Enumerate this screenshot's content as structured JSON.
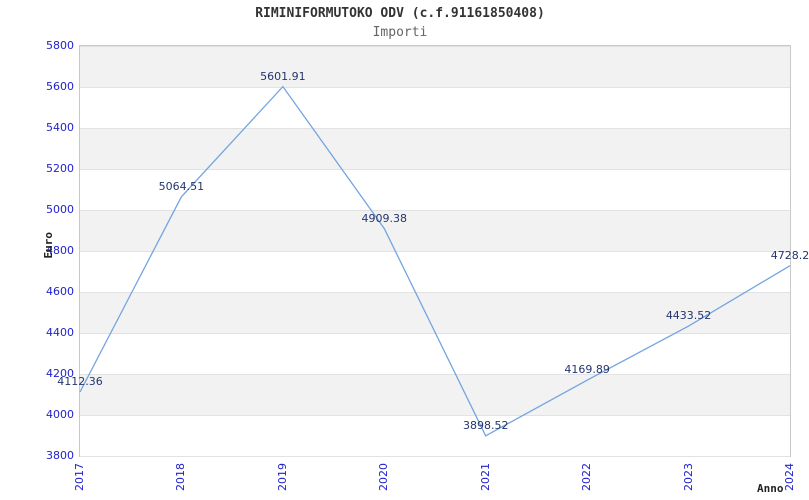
{
  "header": {
    "title": "RIMINIFORMUTOKO ODV (c.f.91161850408)",
    "subtitle": "Importi"
  },
  "axes": {
    "y_label": "Euro",
    "x_label": "Anno"
  },
  "colors": {
    "line": "#74a5e0",
    "tick_label": "#2222cc",
    "point_label": "#24356e",
    "band_gray": "#f2f2f2",
    "band_white": "#ffffff",
    "grid_line": "#e2e2e2",
    "plot_border": "#c9c9c9",
    "title_text": "#333333",
    "subtitle_text": "#666666",
    "axis_title_text": "#222222"
  },
  "chart_data": {
    "type": "line",
    "title": "RIMINIFORMUTOKO ODV (c.f.91161850408)",
    "subtitle": "Importi",
    "xlabel": "Anno",
    "ylabel": "Euro",
    "categories": [
      "2017",
      "2018",
      "2019",
      "2020",
      "2021",
      "2022",
      "2023",
      "2024"
    ],
    "series": [
      {
        "name": "Importi",
        "values": [
          4112.36,
          5064.51,
          5601.91,
          4909.38,
          3898.52,
          4169.89,
          4433.52,
          4728.2
        ]
      }
    ],
    "point_labels": [
      "4112.36",
      "5064.51",
      "5601.91",
      "4909.38",
      "3898.52",
      "4169.89",
      "4433.52",
      "4728.2"
    ],
    "ylim": [
      3800,
      5800
    ],
    "yticks": [
      3800,
      4000,
      4200,
      4400,
      4600,
      4800,
      5000,
      5200,
      5400,
      5600,
      5800
    ],
    "ytick_step": 200,
    "grid": "horizontal alternating gray/white bands",
    "legend_position": "none",
    "markers": "none"
  }
}
